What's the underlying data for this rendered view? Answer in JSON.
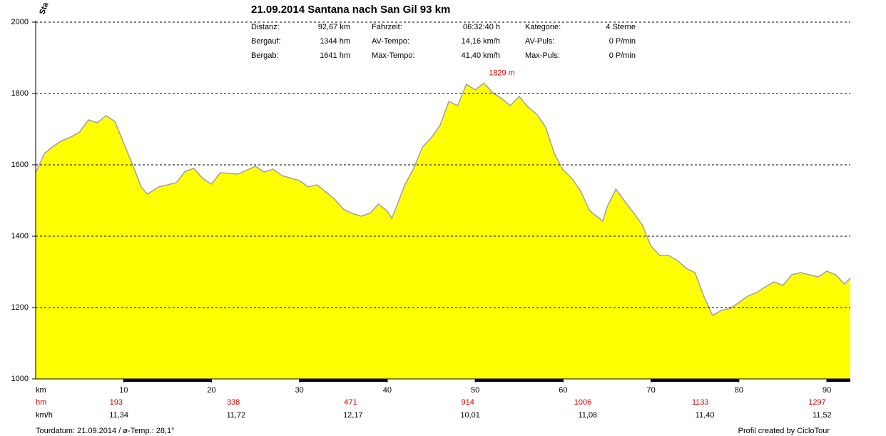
{
  "chart_data": {
    "type": "area",
    "title": "21.09.2014 Santana nach San Gil 93 km",
    "corner_label": "Sta",
    "stats": {
      "rows": [
        [
          "Distanz:",
          "92,67 km",
          "Fahrzeit:",
          "06:32:40 h",
          "Kategorie:",
          "4 Sterne"
        ],
        [
          "Bergauf:",
          "1344 hm",
          "AV-Tempo:",
          "14,16 km/h",
          "AV-Puls:",
          "0 P/min"
        ],
        [
          "Bergab:",
          "1641 hm",
          "Max-Tempo:",
          "41,40 km/h",
          "Max-Puls:",
          "0 P/min"
        ]
      ]
    },
    "annotation": {
      "label": "1829 m",
      "x": 51,
      "value": 1829
    },
    "x": [
      0,
      1,
      2,
      3,
      4,
      5,
      6,
      7,
      8,
      9,
      10,
      11,
      12,
      12.7,
      14,
      16,
      17,
      18,
      19,
      20,
      21,
      23,
      25,
      26,
      27,
      28,
      30,
      31,
      32,
      33,
      34,
      35,
      36,
      37,
      38,
      39,
      40,
      40.5,
      41,
      42,
      43,
      44,
      45,
      46,
      47,
      48,
      49,
      50,
      51,
      52,
      53,
      54,
      55,
      56,
      57,
      58,
      59,
      60,
      61,
      62,
      63,
      64,
      64.5,
      65,
      66,
      67,
      68,
      69,
      70,
      71,
      72,
      73,
      74,
      75,
      76,
      77,
      78,
      79,
      80,
      81,
      82,
      83,
      84,
      85,
      86,
      87,
      88,
      89,
      90,
      91,
      92,
      92.67
    ],
    "values": [
      1578,
      1632,
      1652,
      1668,
      1678,
      1692,
      1726,
      1718,
      1738,
      1722,
      1662,
      1602,
      1538,
      1518,
      1538,
      1550,
      1582,
      1590,
      1562,
      1546,
      1578,
      1574,
      1596,
      1580,
      1588,
      1570,
      1556,
      1538,
      1544,
      1524,
      1504,
      1476,
      1464,
      1456,
      1464,
      1490,
      1470,
      1450,
      1480,
      1544,
      1590,
      1650,
      1676,
      1710,
      1778,
      1766,
      1826,
      1810,
      1829,
      1802,
      1786,
      1766,
      1792,
      1762,
      1742,
      1706,
      1632,
      1586,
      1562,
      1526,
      1472,
      1452,
      1442,
      1482,
      1532,
      1498,
      1466,
      1432,
      1372,
      1346,
      1346,
      1332,
      1310,
      1298,
      1232,
      1178,
      1192,
      1198,
      1214,
      1232,
      1242,
      1258,
      1272,
      1262,
      1292,
      1298,
      1292,
      1286,
      1302,
      1292,
      1266,
      1282
    ],
    "color": "#ffff00",
    "line_color": "#a0a0a0",
    "xlim": [
      0,
      92.67
    ],
    "ylim": [
      1000,
      2000
    ],
    "xticks": [
      10,
      20,
      30,
      40,
      50,
      60,
      70,
      80,
      90
    ],
    "yticks": [
      1000,
      1200,
      1400,
      1600,
      1800,
      2000
    ],
    "grid": true,
    "row_labels": [
      "km",
      "hm",
      "km/h"
    ],
    "hm": [
      193,
      338,
      471,
      914,
      1006,
      1133,
      1297
    ],
    "speeds": [
      "11,34",
      "11,72",
      "12,17",
      "10,01",
      "11,08",
      "11,40",
      "11,52"
    ],
    "footer_left": "Tourdatum: 21.09.2014  /  ø-Temp.: 28,1°",
    "footer_right": "Profil created by CicloTour"
  }
}
